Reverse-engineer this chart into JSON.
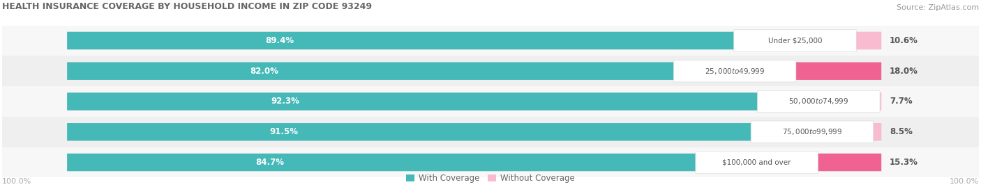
{
  "title": "HEALTH INSURANCE COVERAGE BY HOUSEHOLD INCOME IN ZIP CODE 93249",
  "source": "Source: ZipAtlas.com",
  "categories": [
    "Under $25,000",
    "$25,000 to $49,999",
    "$50,000 to $74,999",
    "$75,000 to $99,999",
    "$100,000 and over"
  ],
  "with_coverage": [
    89.4,
    82.0,
    92.3,
    91.5,
    84.7
  ],
  "without_coverage": [
    10.6,
    18.0,
    7.7,
    8.5,
    15.3
  ],
  "color_with": "#45b8b8",
  "color_with_light": "#7dcfcf",
  "color_without_dark": "#f06292",
  "color_without_light": "#f8bbd0",
  "row_bg_colors": [
    "#f7f7f7",
    "#efefef",
    "#f7f7f7",
    "#efefef",
    "#f7f7f7"
  ],
  "fig_width": 14.06,
  "fig_height": 2.69,
  "dpi": 100
}
